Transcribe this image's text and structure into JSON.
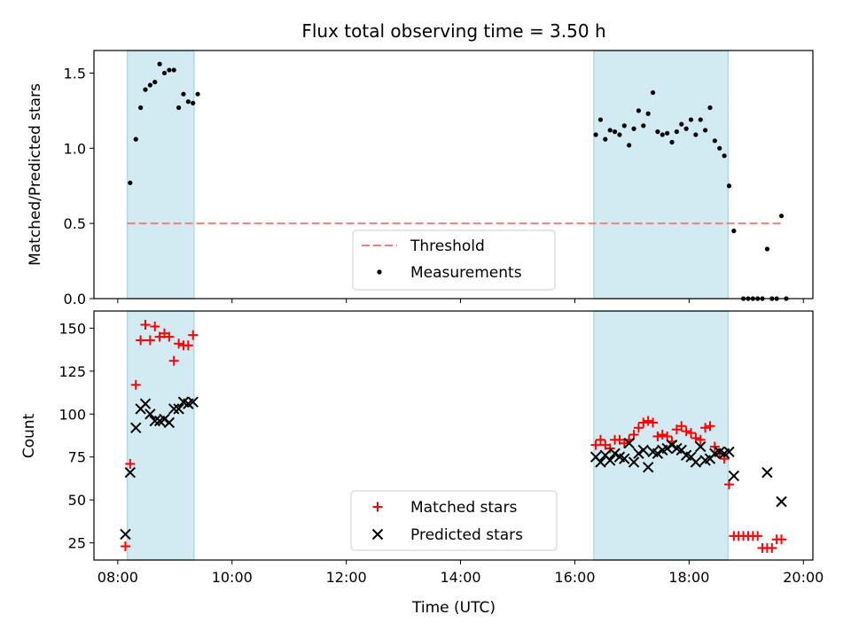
{
  "title": "Flux total observing time = 3.50 h",
  "colors": {
    "measurement": "#000000",
    "threshold": "#f08080",
    "shade": "#add8e6",
    "matched": "#ff0000",
    "predicted": "#000000"
  },
  "chart_data": [
    {
      "type": "scatter",
      "title": "Flux total observing time = 3.50 h",
      "xlabel": "",
      "ylabel": "Matched/Predicted stars",
      "xlim": [
        "07:35",
        "20:10"
      ],
      "ylim": [
        0,
        1.65
      ],
      "x_ticks": [
        "08:00",
        "10:00",
        "12:00",
        "14:00",
        "16:00",
        "18:00",
        "20:00"
      ],
      "y_ticks": [
        "0.0",
        "0.5",
        "1.0",
        "1.5"
      ],
      "shaded_ranges": [
        [
          "08:10",
          "09:20"
        ],
        [
          "16:20",
          "18:41"
        ]
      ],
      "threshold": 0.5,
      "threshold_x_range": [
        "08:10",
        "19:37"
      ],
      "legend": {
        "position": "lower center",
        "entries": [
          "Threshold",
          "Measurements"
        ]
      },
      "series": [
        {
          "name": "Measurements",
          "marker": "dot",
          "points": [
            [
              "08:13",
              0.77
            ],
            [
              "08:19",
              1.06
            ],
            [
              "08:24",
              1.27
            ],
            [
              "08:29",
              1.39
            ],
            [
              "08:34",
              1.42
            ],
            [
              "08:39",
              1.44
            ],
            [
              "08:44",
              1.56
            ],
            [
              "08:49",
              1.5
            ],
            [
              "08:54",
              1.52
            ],
            [
              "08:59",
              1.52
            ],
            [
              "09:04",
              1.27
            ],
            [
              "09:09",
              1.36
            ],
            [
              "09:14",
              1.31
            ],
            [
              "09:19",
              1.3
            ],
            [
              "09:24",
              1.36
            ],
            [
              "16:22",
              1.09
            ],
            [
              "16:27",
              1.19
            ],
            [
              "16:32",
              1.06
            ],
            [
              "16:37",
              1.12
            ],
            [
              "16:42",
              1.11
            ],
            [
              "16:47",
              1.09
            ],
            [
              "16:52",
              1.15
            ],
            [
              "16:57",
              1.02
            ],
            [
              "17:02",
              1.13
            ],
            [
              "17:07",
              1.25
            ],
            [
              "17:12",
              1.15
            ],
            [
              "17:17",
              1.23
            ],
            [
              "17:22",
              1.37
            ],
            [
              "17:27",
              1.11
            ],
            [
              "17:32",
              1.09
            ],
            [
              "17:37",
              1.1
            ],
            [
              "17:42",
              1.04
            ],
            [
              "17:47",
              1.11
            ],
            [
              "17:52",
              1.16
            ],
            [
              "17:57",
              1.13
            ],
            [
              "18:02",
              1.19
            ],
            [
              "18:07",
              1.09
            ],
            [
              "18:12",
              1.19
            ],
            [
              "18:17",
              1.12
            ],
            [
              "18:22",
              1.27
            ],
            [
              "18:27",
              1.05
            ],
            [
              "18:32",
              1.0
            ],
            [
              "18:37",
              0.95
            ],
            [
              "18:42",
              0.75
            ],
            [
              "18:47",
              0.45
            ],
            [
              "18:57",
              0.0
            ],
            [
              "19:02",
              0.0
            ],
            [
              "19:07",
              0.0
            ],
            [
              "19:12",
              0.0
            ],
            [
              "19:17",
              0.0
            ],
            [
              "19:22",
              0.33
            ],
            [
              "19:27",
              0.0
            ],
            [
              "19:32",
              0.0
            ],
            [
              "19:37",
              0.55
            ],
            [
              "19:42",
              0.0
            ]
          ]
        }
      ]
    },
    {
      "type": "scatter",
      "title": "",
      "xlabel": "Time (UTC)",
      "ylabel": "Count",
      "xlim": [
        "07:35",
        "20:10"
      ],
      "ylim": [
        15,
        160
      ],
      "x_ticks": [
        "08:00",
        "10:00",
        "12:00",
        "14:00",
        "16:00",
        "18:00",
        "20:00"
      ],
      "y_ticks": [
        "25",
        "50",
        "75",
        "100",
        "125",
        "150"
      ],
      "shaded_ranges": [
        [
          "08:10",
          "09:20"
        ],
        [
          "16:20",
          "18:41"
        ]
      ],
      "legend": {
        "position": "lower center",
        "entries": [
          "Matched stars",
          "Predicted stars"
        ]
      },
      "series": [
        {
          "name": "Matched stars",
          "marker": "plus",
          "points": [
            [
              "08:08",
              23
            ],
            [
              "08:13",
              71
            ],
            [
              "08:19",
              117
            ],
            [
              "08:24",
              143
            ],
            [
              "08:29",
              152
            ],
            [
              "08:34",
              143
            ],
            [
              "08:39",
              151
            ],
            [
              "08:44",
              145
            ],
            [
              "08:49",
              147
            ],
            [
              "08:54",
              145
            ],
            [
              "08:59",
              131
            ],
            [
              "09:04",
              141
            ],
            [
              "09:09",
              140
            ],
            [
              "09:14",
              140
            ],
            [
              "09:19",
              146
            ],
            [
              "16:22",
              82
            ],
            [
              "16:27",
              85
            ],
            [
              "16:32",
              82
            ],
            [
              "16:37",
              80
            ],
            [
              "16:42",
              85
            ],
            [
              "16:47",
              85
            ],
            [
              "16:52",
              83
            ],
            [
              "16:57",
              85
            ],
            [
              "17:02",
              88
            ],
            [
              "17:07",
              92
            ],
            [
              "17:12",
              95
            ],
            [
              "17:17",
              96
            ],
            [
              "17:22",
              95
            ],
            [
              "17:27",
              87
            ],
            [
              "17:32",
              88
            ],
            [
              "17:37",
              87
            ],
            [
              "17:42",
              84
            ],
            [
              "17:47",
              91
            ],
            [
              "17:52",
              93
            ],
            [
              "17:57",
              90
            ],
            [
              "18:02",
              89
            ],
            [
              "18:07",
              86
            ],
            [
              "18:12",
              85
            ],
            [
              "18:17",
              92
            ],
            [
              "18:22",
              93
            ],
            [
              "18:27",
              81
            ],
            [
              "18:32",
              77
            ],
            [
              "18:37",
              74
            ],
            [
              "18:42",
              59
            ],
            [
              "18:47",
              29
            ],
            [
              "18:52",
              29
            ],
            [
              "18:57",
              29
            ],
            [
              "19:02",
              29
            ],
            [
              "19:07",
              29
            ],
            [
              "19:12",
              29
            ],
            [
              "19:17",
              22
            ],
            [
              "19:22",
              22
            ],
            [
              "19:27",
              22
            ],
            [
              "19:32",
              27
            ],
            [
              "19:37",
              27
            ]
          ]
        },
        {
          "name": "Predicted stars",
          "marker": "x",
          "points": [
            [
              "08:08",
              30
            ],
            [
              "08:13",
              66
            ],
            [
              "08:19",
              92
            ],
            [
              "08:24",
              103
            ],
            [
              "08:29",
              106
            ],
            [
              "08:34",
              100
            ],
            [
              "08:39",
              96
            ],
            [
              "08:44",
              96
            ],
            [
              "08:49",
              97
            ],
            [
              "08:54",
              95
            ],
            [
              "08:59",
              103
            ],
            [
              "09:04",
              103
            ],
            [
              "09:09",
              107
            ],
            [
              "09:14",
              106
            ],
            [
              "09:19",
              107
            ],
            [
              "16:22",
              75
            ],
            [
              "16:27",
              72
            ],
            [
              "16:32",
              76
            ],
            [
              "16:37",
              73
            ],
            [
              "16:42",
              77
            ],
            [
              "16:47",
              75
            ],
            [
              "16:52",
              74
            ],
            [
              "16:57",
              83
            ],
            [
              "17:02",
              72
            ],
            [
              "17:07",
              77
            ],
            [
              "17:12",
              79
            ],
            [
              "17:17",
              69
            ],
            [
              "17:22",
              78
            ],
            [
              "17:27",
              77
            ],
            [
              "17:32",
              79
            ],
            [
              "17:37",
              80
            ],
            [
              "17:42",
              82
            ],
            [
              "17:47",
              80
            ],
            [
              "17:52",
              79
            ],
            [
              "17:57",
              76
            ],
            [
              "18:02",
              75
            ],
            [
              "18:07",
              72
            ],
            [
              "18:12",
              81
            ],
            [
              "18:17",
              73
            ],
            [
              "18:22",
              74
            ],
            [
              "18:27",
              77
            ],
            [
              "18:32",
              78
            ],
            [
              "18:37",
              77
            ],
            [
              "18:42",
              78
            ],
            [
              "18:47",
              64
            ],
            [
              "19:22",
              66
            ],
            [
              "19:37",
              49
            ]
          ]
        }
      ]
    }
  ]
}
